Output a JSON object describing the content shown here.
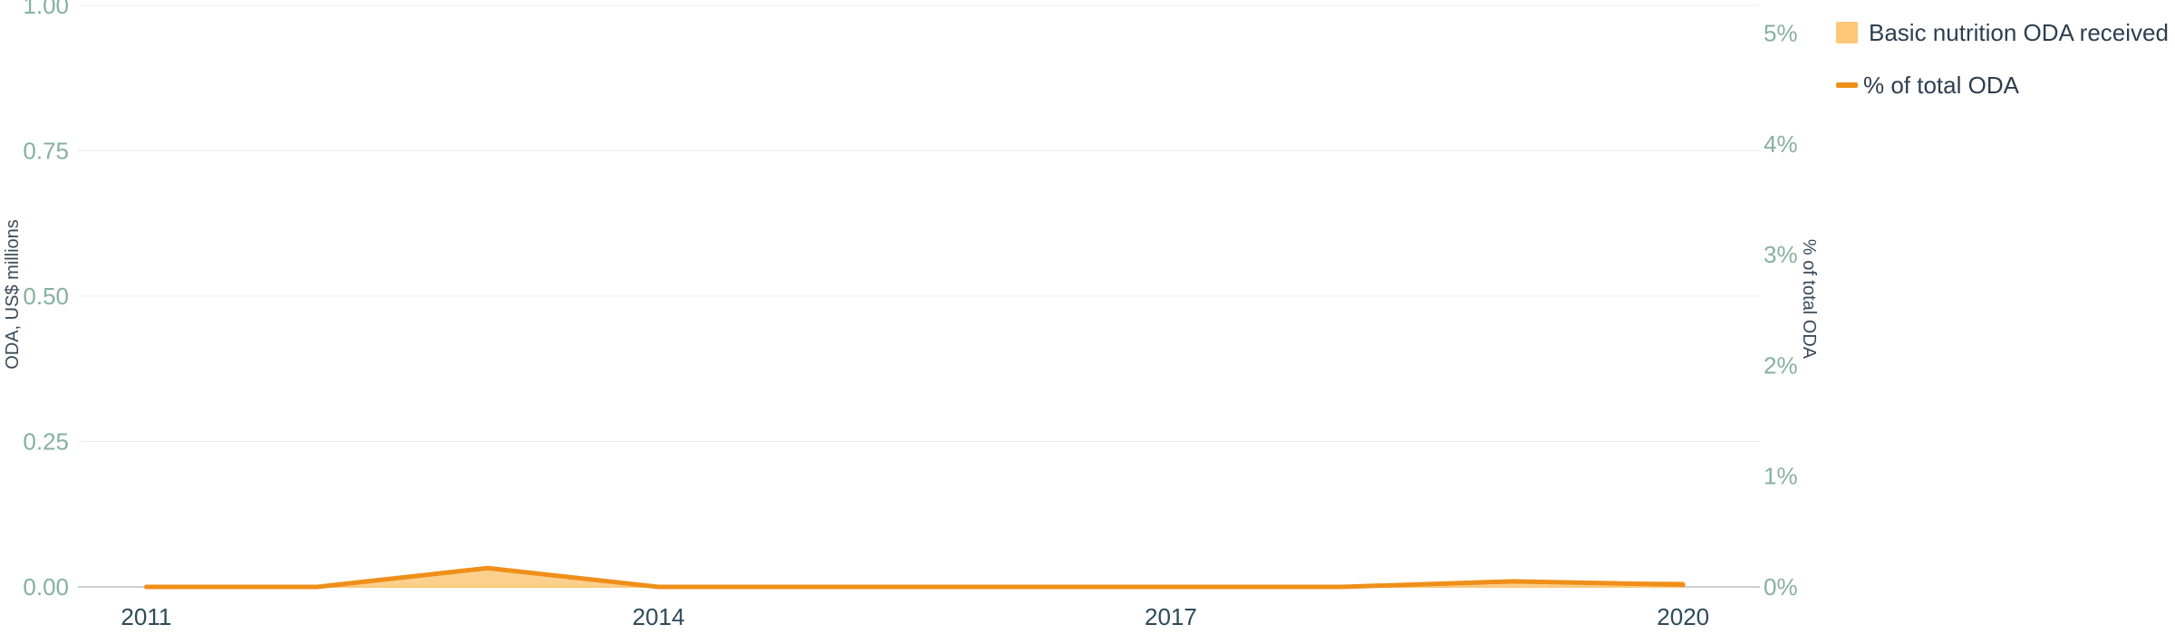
{
  "chart_data": {
    "type": "area+line",
    "x": [
      2011,
      2012,
      2013,
      2014,
      2015,
      2016,
      2017,
      2018,
      2019,
      2020
    ],
    "xticks": [
      "2011",
      "2014",
      "2017",
      "2020"
    ],
    "xlim": [
      2010.6,
      2020.45
    ],
    "ylabel": "ODA, US$ millions",
    "ylim": [
      0,
      1
    ],
    "yticks": [
      "0.00",
      "0.25",
      "0.50",
      "0.75",
      "1.00"
    ],
    "y2label": "% of total ODA",
    "y2lim": [
      0,
      5.25
    ],
    "y2ticks": [
      "0%",
      "1%",
      "2%",
      "3%",
      "4%",
      "5%"
    ],
    "grid": true,
    "legend_position": "top-right",
    "series": [
      {
        "name": "Basic nutrition ODA received",
        "kind": "area",
        "axis": "left",
        "color": "#fcc779",
        "values": [
          0,
          0,
          0.03,
          0,
          0,
          0,
          0,
          0,
          0.006,
          0.008
        ]
      },
      {
        "name": "% of total ODA",
        "kind": "line",
        "axis": "right",
        "color": "#ef8f1a",
        "values": [
          0,
          0,
          0.17,
          0,
          0,
          0,
          0,
          0,
          0.05,
          0.02
        ]
      }
    ]
  }
}
